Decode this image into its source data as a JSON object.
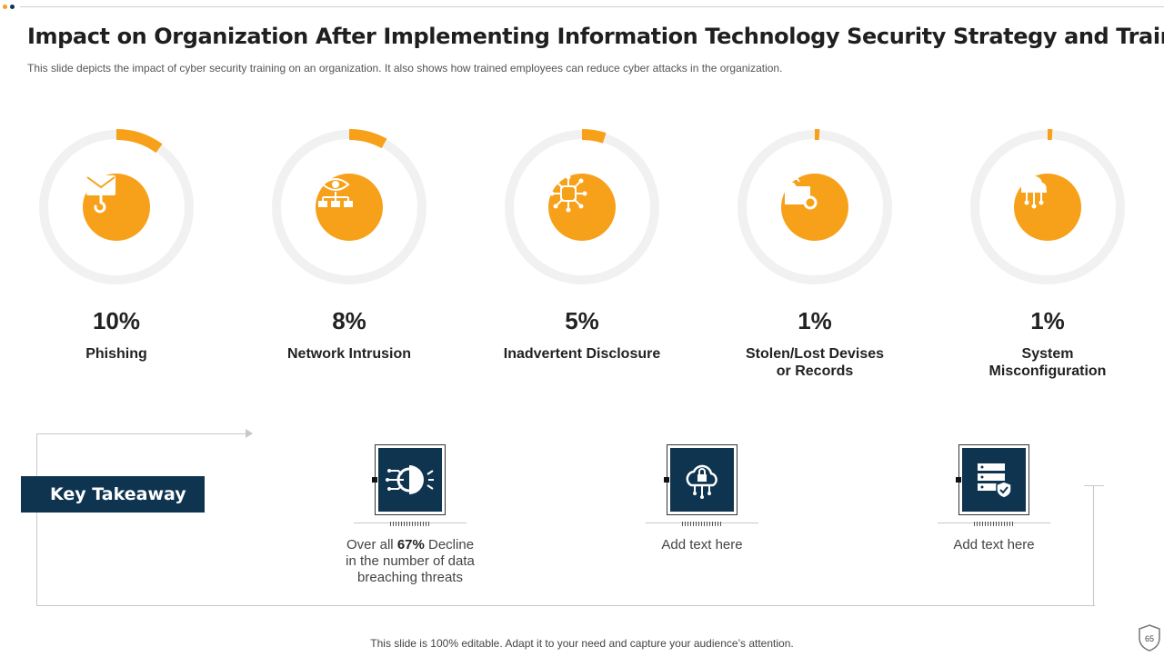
{
  "header": {
    "title": "Impact on Organization After Implementing Information Technology Security Strategy and Training",
    "subtitle": "This slide depicts the impact of cyber security training on an organization. It also shows how trained employees can reduce cyber attacks in the organization."
  },
  "stats": [
    {
      "percent": "10%",
      "value": 10,
      "label": "Phishing",
      "icon": "email-hook-icon"
    },
    {
      "percent": "8%",
      "value": 8,
      "label": "Network Intrusion",
      "icon": "eye-network-icon"
    },
    {
      "percent": "5%",
      "value": 5,
      "label": "Inadvertent Disclosure",
      "icon": "chip-network-icon"
    },
    {
      "percent": "1%",
      "value": 1,
      "label_line1": "Stolen/Lost Devises",
      "label_line2": "or Records",
      "icon": "folder-gear-icon"
    },
    {
      "percent": "1%",
      "value": 1,
      "label_line1": "System",
      "label_line2": "Misconfiguration",
      "icon": "cloud-network-icon"
    }
  ],
  "takeaway": {
    "heading": "Key Takeaway",
    "cards": [
      {
        "prefix": "Over all ",
        "highlight": "67%",
        "suffix": " Decline",
        "line2": "in the number of data",
        "line3": "breaching threats",
        "icon": "hacker-signal-icon"
      },
      {
        "text": "Add text here",
        "icon": "cloud-lock-icon"
      },
      {
        "text": "Add text here",
        "icon": "server-shield-icon"
      }
    ]
  },
  "footer": {
    "text": "This slide is 100% editable. Adapt it to your need and capture your audience’s attention.",
    "page_number": "65"
  },
  "colors": {
    "accent": "#f7a11a",
    "navy": "#0e3450",
    "ring_track": "#f1f1f1"
  }
}
